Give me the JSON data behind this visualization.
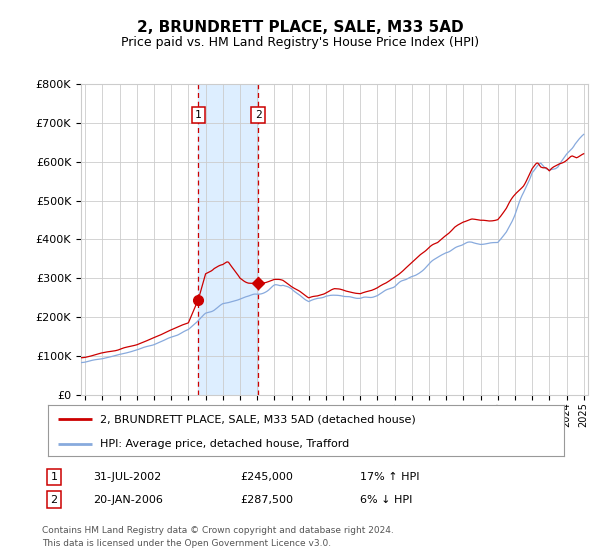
{
  "title": "2, BRUNDRETT PLACE, SALE, M33 5AD",
  "subtitle": "Price paid vs. HM Land Registry's House Price Index (HPI)",
  "ylim": [
    0,
    800000
  ],
  "xlim_start": 1995.75,
  "xlim_end": 2025.25,
  "sale1_date": 2002.58,
  "sale1_price": 245000,
  "sale1_label": "1",
  "sale2_date": 2006.05,
  "sale2_price": 287500,
  "sale2_label": "2",
  "red_line_color": "#cc0000",
  "blue_line_color": "#88aadd",
  "shade_color": "#ddeeff",
  "dashed_color": "#cc0000",
  "grid_color": "#cccccc",
  "background_color": "#ffffff",
  "legend_line1": "2, BRUNDRETT PLACE, SALE, M33 5AD (detached house)",
  "legend_line2": "HPI: Average price, detached house, Trafford",
  "table_row1": [
    "1",
    "31-JUL-2002",
    "£245,000",
    "17% ↑ HPI"
  ],
  "table_row2": [
    "2",
    "20-JAN-2006",
    "£287,500",
    "6% ↓ HPI"
  ],
  "footer": "Contains HM Land Registry data © Crown copyright and database right 2024.\nThis data is licensed under the Open Government Licence v3.0."
}
